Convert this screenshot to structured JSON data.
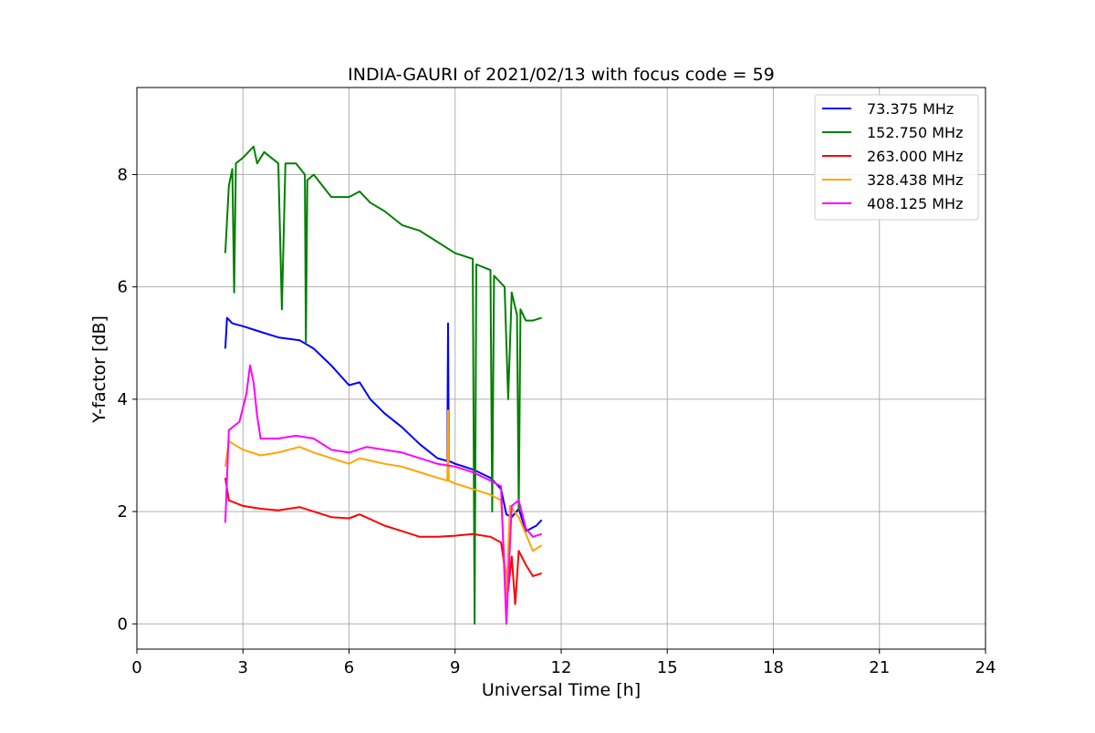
{
  "chart_data": {
    "type": "line",
    "title": "INDIA-GAURI of 2021/02/13 with focus code = 59",
    "xlabel": "Universal Time [h]",
    "ylabel": "Y-factor [dB]",
    "xlim": [
      0,
      24
    ],
    "ylim": [
      -0.45,
      9.55
    ],
    "xticks": [
      0,
      3,
      6,
      9,
      12,
      15,
      18,
      21,
      24
    ],
    "yticks": [
      0,
      2,
      4,
      6,
      8
    ],
    "grid": true,
    "legend_position": "top-right",
    "series": [
      {
        "name": " 73.375 MHz",
        "color": "#0000ff",
        "points": [
          [
            2.5,
            4.9
          ],
          [
            2.55,
            5.45
          ],
          [
            2.7,
            5.35
          ],
          [
            3.0,
            5.3
          ],
          [
            3.5,
            5.2
          ],
          [
            4.0,
            5.1
          ],
          [
            4.6,
            5.05
          ],
          [
            5.0,
            4.9
          ],
          [
            5.5,
            4.6
          ],
          [
            6.0,
            4.25
          ],
          [
            6.3,
            4.3
          ],
          [
            6.6,
            4.0
          ],
          [
            7.0,
            3.75
          ],
          [
            7.5,
            3.5
          ],
          [
            8.0,
            3.2
          ],
          [
            8.5,
            2.95
          ],
          [
            8.78,
            2.9
          ],
          [
            8.8,
            5.35
          ],
          [
            8.82,
            2.9
          ],
          [
            9.0,
            2.85
          ],
          [
            9.5,
            2.75
          ],
          [
            10.0,
            2.6
          ],
          [
            10.3,
            2.4
          ],
          [
            10.45,
            1.95
          ],
          [
            10.6,
            1.9
          ],
          [
            10.8,
            2.05
          ],
          [
            11.0,
            1.65
          ],
          [
            11.3,
            1.75
          ],
          [
            11.45,
            1.85
          ]
        ]
      },
      {
        "name": "152.750 MHz",
        "color": "#008000",
        "points": [
          [
            2.5,
            6.6
          ],
          [
            2.6,
            7.8
          ],
          [
            2.7,
            8.1
          ],
          [
            2.75,
            5.9
          ],
          [
            2.8,
            8.2
          ],
          [
            3.0,
            8.3
          ],
          [
            3.3,
            8.5
          ],
          [
            3.4,
            8.2
          ],
          [
            3.6,
            8.4
          ],
          [
            4.0,
            8.2
          ],
          [
            4.1,
            5.6
          ],
          [
            4.2,
            8.2
          ],
          [
            4.5,
            8.2
          ],
          [
            4.75,
            8.0
          ],
          [
            4.78,
            5.0
          ],
          [
            4.82,
            7.9
          ],
          [
            5.0,
            8.0
          ],
          [
            5.5,
            7.6
          ],
          [
            6.0,
            7.6
          ],
          [
            6.3,
            7.7
          ],
          [
            6.6,
            7.5
          ],
          [
            7.0,
            7.35
          ],
          [
            7.5,
            7.1
          ],
          [
            8.0,
            7.0
          ],
          [
            8.5,
            6.8
          ],
          [
            9.0,
            6.6
          ],
          [
            9.5,
            6.5
          ],
          [
            9.55,
            0.0
          ],
          [
            9.6,
            6.4
          ],
          [
            10.0,
            6.3
          ],
          [
            10.05,
            2.0
          ],
          [
            10.1,
            6.2
          ],
          [
            10.4,
            6.0
          ],
          [
            10.5,
            4.0
          ],
          [
            10.6,
            5.9
          ],
          [
            10.75,
            5.5
          ],
          [
            10.8,
            2.0
          ],
          [
            10.85,
            5.6
          ],
          [
            11.0,
            5.4
          ],
          [
            11.2,
            5.4
          ],
          [
            11.45,
            5.45
          ]
        ]
      },
      {
        "name": "263.000 MHz",
        "color": "#ff0000",
        "points": [
          [
            2.5,
            2.6
          ],
          [
            2.6,
            2.2
          ],
          [
            3.0,
            2.1
          ],
          [
            3.5,
            2.05
          ],
          [
            4.0,
            2.02
          ],
          [
            4.6,
            2.08
          ],
          [
            5.0,
            2.0
          ],
          [
            5.5,
            1.9
          ],
          [
            6.0,
            1.88
          ],
          [
            6.3,
            1.95
          ],
          [
            7.0,
            1.75
          ],
          [
            7.5,
            1.65
          ],
          [
            8.0,
            1.55
          ],
          [
            8.5,
            1.55
          ],
          [
            9.0,
            1.57
          ],
          [
            9.5,
            1.6
          ],
          [
            10.0,
            1.55
          ],
          [
            10.3,
            1.45
          ],
          [
            10.5,
            0.6
          ],
          [
            10.6,
            1.2
          ],
          [
            10.7,
            0.35
          ],
          [
            10.8,
            1.3
          ],
          [
            11.0,
            1.05
          ],
          [
            11.2,
            0.85
          ],
          [
            11.45,
            0.9
          ]
        ]
      },
      {
        "name": "328.438 MHz",
        "color": "#ffa500",
        "points": [
          [
            2.5,
            2.8
          ],
          [
            2.6,
            3.25
          ],
          [
            3.0,
            3.1
          ],
          [
            3.5,
            3.0
          ],
          [
            4.0,
            3.05
          ],
          [
            4.6,
            3.15
          ],
          [
            5.0,
            3.05
          ],
          [
            5.5,
            2.95
          ],
          [
            6.0,
            2.85
          ],
          [
            6.3,
            2.95
          ],
          [
            7.0,
            2.85
          ],
          [
            7.5,
            2.8
          ],
          [
            8.0,
            2.7
          ],
          [
            8.5,
            2.6
          ],
          [
            8.78,
            2.55
          ],
          [
            8.8,
            3.8
          ],
          [
            8.82,
            2.55
          ],
          [
            9.0,
            2.5
          ],
          [
            9.5,
            2.4
          ],
          [
            10.0,
            2.3
          ],
          [
            10.3,
            2.2
          ],
          [
            10.45,
            0.5
          ],
          [
            10.55,
            2.1
          ],
          [
            10.8,
            1.9
          ],
          [
            11.0,
            1.6
          ],
          [
            11.2,
            1.3
          ],
          [
            11.45,
            1.4
          ]
        ]
      },
      {
        "name": "408.125 MHz",
        "color": "#ff00ff",
        "points": [
          [
            2.5,
            1.8
          ],
          [
            2.6,
            3.45
          ],
          [
            2.9,
            3.6
          ],
          [
            3.1,
            4.1
          ],
          [
            3.2,
            4.6
          ],
          [
            3.3,
            4.3
          ],
          [
            3.4,
            3.7
          ],
          [
            3.5,
            3.3
          ],
          [
            4.0,
            3.3
          ],
          [
            4.5,
            3.35
          ],
          [
            5.0,
            3.3
          ],
          [
            5.5,
            3.1
          ],
          [
            6.0,
            3.05
          ],
          [
            6.5,
            3.15
          ],
          [
            7.0,
            3.1
          ],
          [
            7.5,
            3.05
          ],
          [
            8.0,
            2.95
          ],
          [
            8.5,
            2.85
          ],
          [
            9.0,
            2.8
          ],
          [
            9.5,
            2.7
          ],
          [
            10.0,
            2.55
          ],
          [
            10.3,
            2.45
          ],
          [
            10.45,
            0.0
          ],
          [
            10.6,
            2.1
          ],
          [
            10.8,
            2.2
          ],
          [
            11.0,
            1.7
          ],
          [
            11.2,
            1.55
          ],
          [
            11.45,
            1.6
          ]
        ]
      }
    ]
  }
}
